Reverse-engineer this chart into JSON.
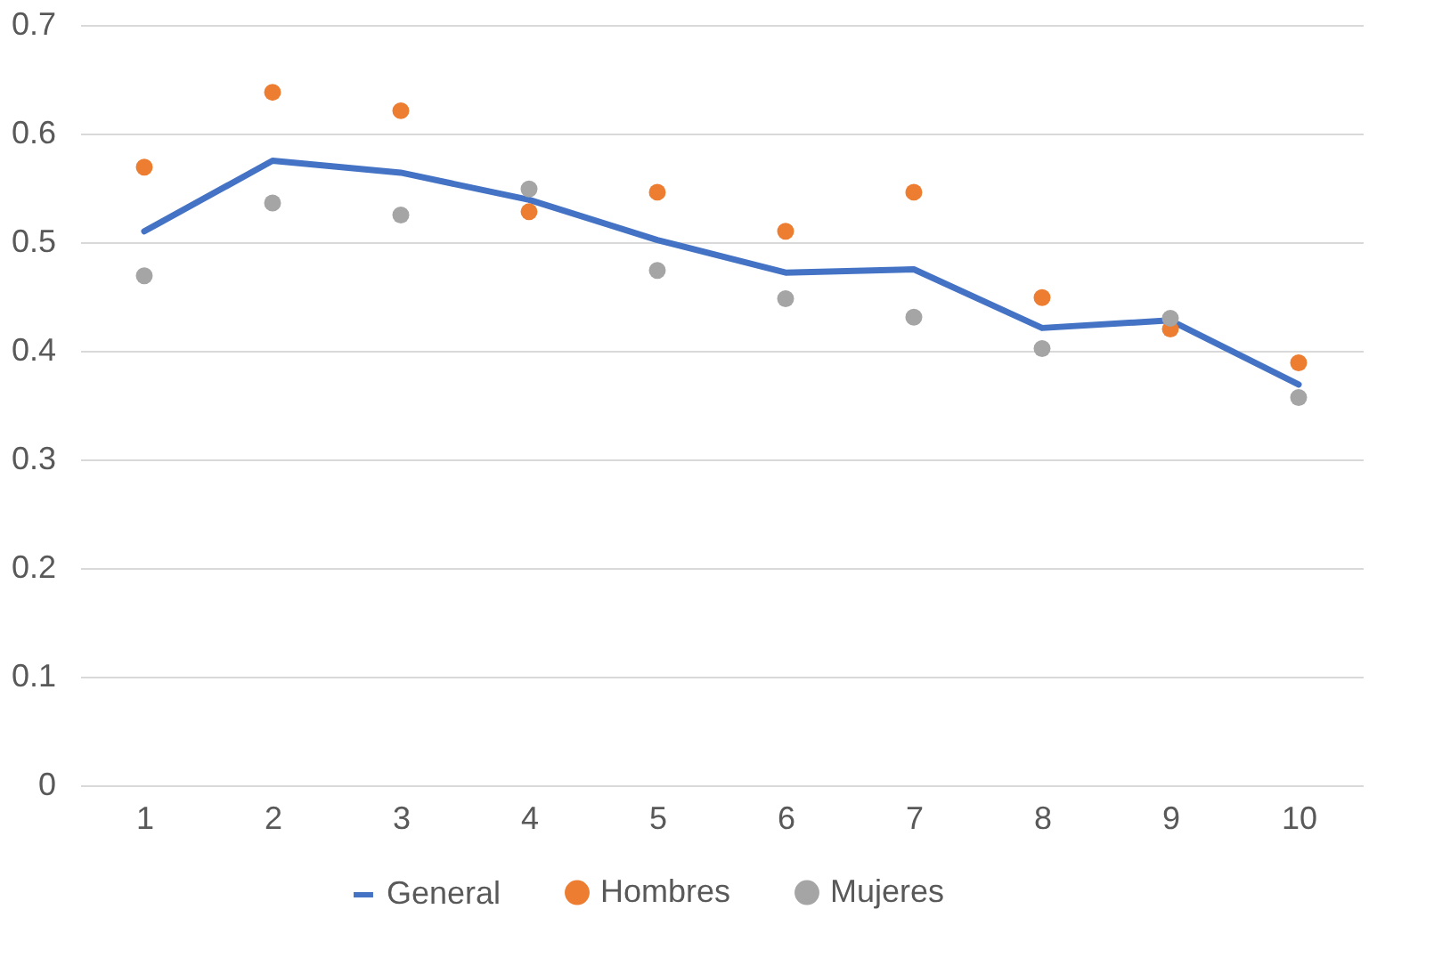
{
  "chart_data": {
    "type": "line",
    "categories": [
      "1",
      "2",
      "3",
      "4",
      "5",
      "6",
      "7",
      "8",
      "9",
      "10"
    ],
    "series": [
      {
        "name": "General",
        "color": "#4472c4",
        "values": [
          0.51,
          0.575,
          0.564,
          0.539,
          0.502,
          0.472,
          0.475,
          0.421,
          0.428,
          0.369
        ]
      },
      {
        "name": "Hombres",
        "type": "scatter",
        "color": "#ed7d31",
        "marker": "circle",
        "values": [
          0.569,
          0.638,
          0.621,
          0.528,
          0.546,
          0.51,
          0.546,
          0.449,
          0.42,
          0.389
        ]
      },
      {
        "name": "Mujeres",
        "type": "scatter",
        "color": "#a5a5a5",
        "marker": "circle",
        "values": [
          0.469,
          0.536,
          0.525,
          0.549,
          0.474,
          0.448,
          0.431,
          0.402,
          0.43,
          0.357
        ]
      }
    ],
    "ylim": [
      0,
      0.7
    ],
    "yticks": [
      {
        "value": 0,
        "label": "0"
      },
      0.1,
      0.2,
      0.3,
      0.4,
      0.5,
      0.6,
      0.7
    ],
    "grid": "y",
    "legend": "bottom"
  }
}
